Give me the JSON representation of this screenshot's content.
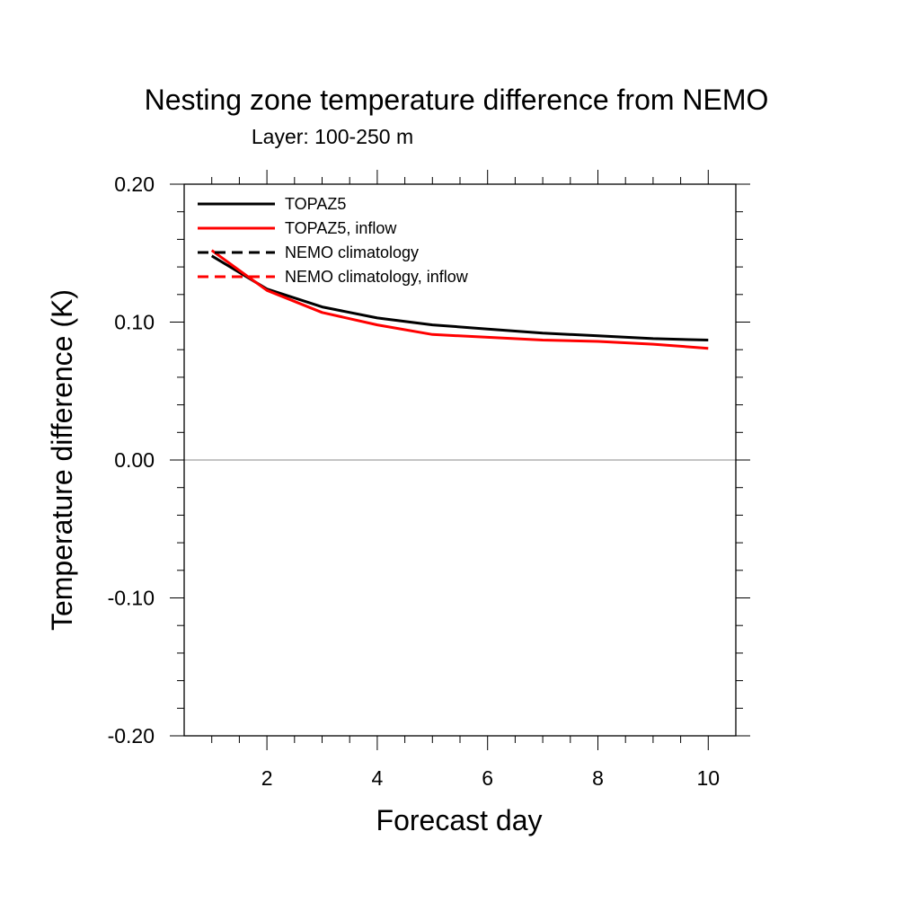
{
  "chart_data": {
    "type": "line",
    "title": "Nesting zone temperature difference from NEMO",
    "subtitle": "Layer: 100-250 m",
    "xlabel": "Forecast day",
    "ylabel": "Temperature difference (K)",
    "xlim": [
      0.5,
      10.5
    ],
    "ylim": [
      -0.2,
      0.2
    ],
    "xticks": [
      2,
      4,
      6,
      8,
      10
    ],
    "xtick_labels": [
      "2",
      "4",
      "6",
      "8",
      "10"
    ],
    "yticks": [
      -0.2,
      -0.1,
      0.0,
      0.1,
      0.2
    ],
    "ytick_labels": [
      "-0.20",
      "-0.10",
      "0.00",
      "0.10",
      "0.20"
    ],
    "zero_line": true,
    "grid": false,
    "legend_position": "top-left",
    "series": [
      {
        "name": "TOPAZ5",
        "color": "#000000",
        "dash": "solid",
        "x": [
          1,
          2,
          3,
          4,
          5,
          6,
          7,
          8,
          9,
          10
        ],
        "y": [
          0.148,
          0.124,
          0.111,
          0.103,
          0.098,
          0.095,
          0.092,
          0.09,
          0.088,
          0.087
        ]
      },
      {
        "name": "TOPAZ5, inflow",
        "color": "#ff0000",
        "dash": "solid",
        "x": [
          1,
          2,
          3,
          4,
          5,
          6,
          7,
          8,
          9,
          10
        ],
        "y": [
          0.152,
          0.123,
          0.107,
          0.098,
          0.091,
          0.089,
          0.087,
          0.086,
          0.084,
          0.081
        ]
      },
      {
        "name": "NEMO climatology",
        "color": "#000000",
        "dash": "dashed",
        "x": [],
        "y": []
      },
      {
        "name": "NEMO climatology, inflow",
        "color": "#ff0000",
        "dash": "dashed",
        "x": [],
        "y": []
      }
    ]
  }
}
